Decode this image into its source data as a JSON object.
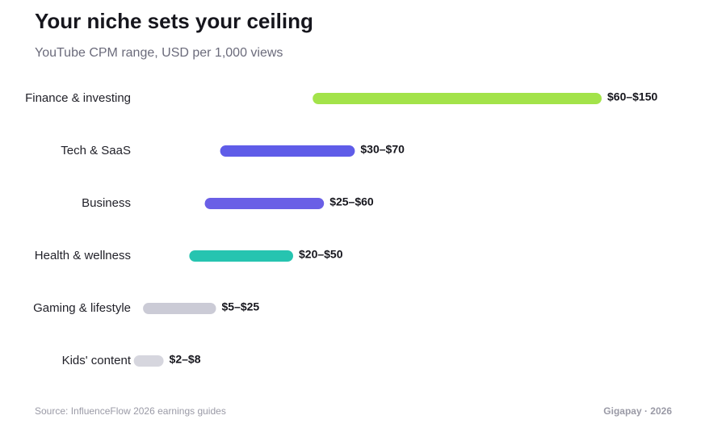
{
  "chart_data": {
    "type": "range-bar",
    "title": "Your niche sets your ceiling",
    "subtitle": "YouTube CPM range, USD per 1,000 views",
    "categories": [
      "Finance & investing",
      "Tech & SaaS",
      "Business",
      "Health & wellness",
      "Gaming & lifestyle",
      "Kids' content"
    ],
    "low": [
      60,
      30,
      25,
      20,
      5,
      2
    ],
    "high": [
      150,
      70,
      60,
      50,
      25,
      8
    ],
    "value_labels": [
      "$60–$150",
      "$30–$70",
      "$25–$60",
      "$20–$50",
      "$5–$25",
      "$2–$8"
    ],
    "colors": [
      "#a3e34a",
      "#5f5ce8",
      "#6a5fe6",
      "#26c4b0",
      "#cbcbd6",
      "#d6d6de"
    ],
    "xlim": [
      0,
      150
    ],
    "source": "Source: InfluenceFlow 2026 earnings guides",
    "credit": "Gigapay · 2026"
  }
}
